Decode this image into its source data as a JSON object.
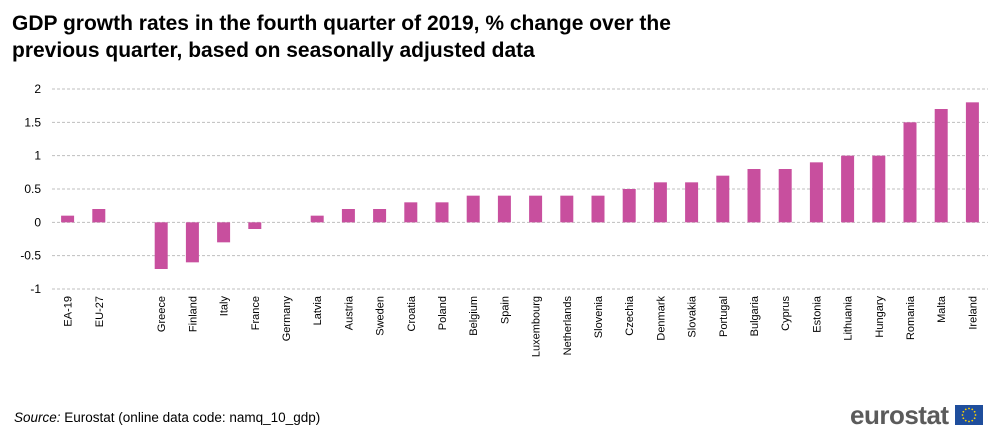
{
  "title_line1": "GDP growth rates in the fourth quarter of 2019, % change over the",
  "title_line2": "previous quarter, based on seasonally adjusted data",
  "source_label": "Source:",
  "source_text": " Eurostat (online data code: namq_10_gdp)",
  "logo_text": "eurostat",
  "colors": {
    "bar": "#c84f9e",
    "grid": "#bfbfbf",
    "flag": "#1f4e9c",
    "star": "#ffd400"
  },
  "chart_data": {
    "type": "bar",
    "title": "GDP growth rates in the fourth quarter of 2019, % change over the previous quarter, based on seasonally adjusted data",
    "xlabel": "",
    "ylabel": "",
    "ylim": [
      -1,
      2
    ],
    "yticks": [
      -1,
      -0.5,
      0,
      0.5,
      1,
      1.5,
      2
    ],
    "ytick_labels": [
      "-1",
      "-0.5",
      "0",
      "0.5",
      "1",
      "1.5",
      "2"
    ],
    "grid": true,
    "categories": [
      "EA-19",
      "EU-27",
      "",
      "Greece",
      "Finland",
      "Italy",
      "France",
      "Germany",
      "Latvia",
      "Austria",
      "Sweden",
      "Croatia",
      "Poland",
      "Belgium",
      "Spain",
      "Luxembourg",
      "Netherlands",
      "Slovenia",
      "Czechia",
      "Denmark",
      "Slovakia",
      "Portugal",
      "Bulgaria",
      "Cyprus",
      "Estonia",
      "Lithuania",
      "Hungary",
      "Romania",
      "Malta",
      "Ireland"
    ],
    "values": [
      0.1,
      0.2,
      null,
      -0.7,
      -0.6,
      -0.3,
      -0.1,
      0.0,
      0.1,
      0.2,
      0.2,
      0.3,
      0.3,
      0.4,
      0.4,
      0.4,
      0.4,
      0.4,
      0.5,
      0.6,
      0.6,
      0.7,
      0.8,
      0.8,
      0.9,
      1.0,
      1.0,
      1.5,
      1.7,
      1.8
    ]
  }
}
